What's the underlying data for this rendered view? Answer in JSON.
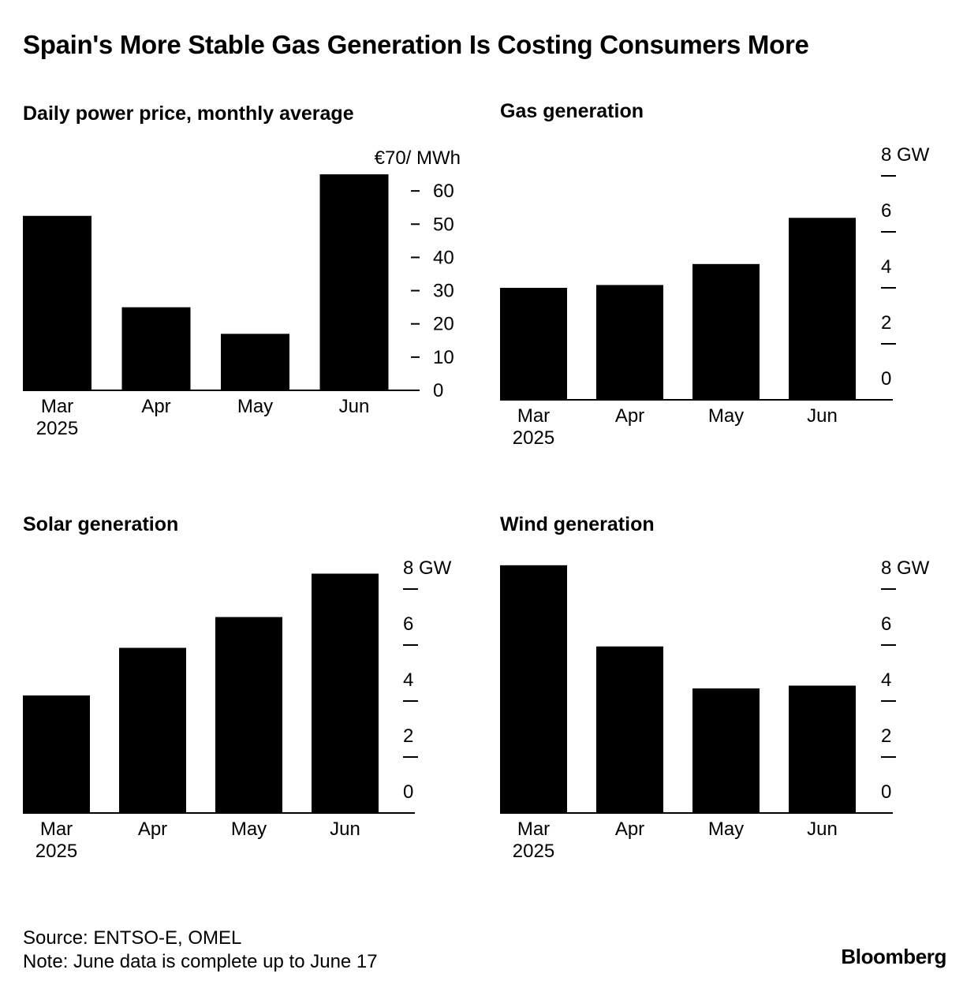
{
  "headline": "Spain's More Stable Gas Generation Is Costing Consumers More",
  "footer": {
    "source": "Source: ENTSO-E, OMEL",
    "note": "Note: June data is complete up to June 17",
    "brand": "Bloomberg"
  },
  "colors": {
    "bar": "#000000",
    "background": "#ffffff",
    "text": "#000000"
  },
  "chart_data": [
    {
      "type": "bar",
      "title": "Daily power price, monthly average",
      "categories": [
        "Mar",
        "Apr",
        "May",
        "Jun"
      ],
      "category_sublabels": [
        "2025",
        "",
        "",
        ""
      ],
      "values": [
        52.5,
        25,
        17,
        65
      ],
      "ylim": [
        0,
        70
      ],
      "yticks": [
        0,
        10,
        20,
        30,
        40,
        50,
        60,
        70
      ],
      "ytick_labels": [
        "0",
        "10",
        "20",
        "30",
        "40",
        "50",
        "60",
        "€70/ MWh"
      ],
      "axis_position": "right",
      "grid": false
    },
    {
      "type": "bar",
      "title": "Gas generation",
      "categories": [
        "Mar",
        "Apr",
        "May",
        "Jun"
      ],
      "category_sublabels": [
        "2025",
        "",
        "",
        ""
      ],
      "values": [
        4.0,
        4.1,
        4.85,
        6.5
      ],
      "ylim": [
        0,
        8
      ],
      "yticks": [
        0,
        2,
        4,
        6,
        8
      ],
      "ytick_labels": [
        "0",
        "2",
        "4",
        "6",
        "8 GW"
      ],
      "axis_position": "right",
      "grid": false
    },
    {
      "type": "bar",
      "title": "Solar generation",
      "categories": [
        "Mar",
        "Apr",
        "May",
        "Jun"
      ],
      "category_sublabels": [
        "2025",
        "",
        "",
        ""
      ],
      "values": [
        4.2,
        5.9,
        7.0,
        8.55
      ],
      "ylim": [
        0,
        8
      ],
      "yticks": [
        0,
        2,
        4,
        6,
        8
      ],
      "ytick_labels": [
        "0",
        "2",
        "4",
        "6",
        "8 GW"
      ],
      "axis_position": "right",
      "grid": false
    },
    {
      "type": "bar",
      "title": "Wind generation",
      "categories": [
        "Mar",
        "Apr",
        "May",
        "Jun"
      ],
      "category_sublabels": [
        "2025",
        "",
        "",
        ""
      ],
      "values": [
        8.85,
        5.95,
        4.45,
        4.55
      ],
      "ylim": [
        0,
        8
      ],
      "yticks": [
        0,
        2,
        4,
        6,
        8
      ],
      "ytick_labels": [
        "0",
        "2",
        "4",
        "6",
        "8 GW"
      ],
      "axis_position": "right",
      "grid": false
    }
  ]
}
